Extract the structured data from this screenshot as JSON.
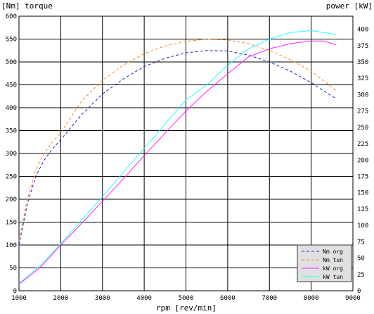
{
  "chart_data": {
    "type": "line",
    "left_axis_label": "[Nm]  torque",
    "right_axis_label": "power  [kW]",
    "xlabel": "rpm [rev/min]",
    "xlim": [
      1000,
      9000
    ],
    "ylim_left": [
      0,
      600
    ],
    "ylim_right": [
      0,
      420
    ],
    "x_ticks": [
      "1000",
      "2000",
      "3000",
      "4000",
      "5000",
      "6000",
      "7000",
      "8000",
      "9000"
    ],
    "y_left_ticks": [
      "0",
      "50",
      "100",
      "150",
      "200",
      "250",
      "300",
      "350",
      "400",
      "450",
      "500",
      "550",
      "600"
    ],
    "y_right_ticks": [
      "0",
      "25",
      "50",
      "75",
      "100",
      "125",
      "150",
      "175",
      "200",
      "225",
      "250",
      "275",
      "300",
      "325",
      "350",
      "375",
      "400"
    ],
    "grid": true,
    "legend_position": "bottom-right",
    "series": [
      {
        "name": "Nm org",
        "axis": "left",
        "style": "dashed",
        "color": "#2222cc",
        "x": [
          1000,
          1200,
          1400,
          1600,
          1800,
          2000,
          2500,
          3000,
          3500,
          4000,
          4500,
          5000,
          5500,
          6000,
          6500,
          7000,
          7500,
          8000,
          8500,
          8600
        ],
        "y": [
          100,
          190,
          250,
          285,
          310,
          330,
          385,
          430,
          463,
          490,
          508,
          520,
          525,
          524,
          515,
          500,
          480,
          455,
          425,
          420
        ]
      },
      {
        "name": "Nm tun",
        "axis": "left",
        "style": "dashed",
        "color": "#ff8822",
        "x": [
          1000,
          1200,
          1400,
          1600,
          1800,
          2000,
          2500,
          3000,
          3500,
          4000,
          4500,
          5000,
          5500,
          6000,
          6500,
          7000,
          7500,
          8000,
          8500,
          8600
        ],
        "y": [
          110,
          200,
          265,
          300,
          325,
          345,
          415,
          460,
          493,
          518,
          535,
          545,
          550,
          548,
          540,
          525,
          505,
          480,
          445,
          435
        ]
      },
      {
        "name": "kW org",
        "axis": "right",
        "style": "solid",
        "color": "#ff22ff",
        "x": [
          1000,
          1500,
          2000,
          2500,
          3000,
          3500,
          4000,
          4500,
          5000,
          5500,
          6000,
          6500,
          7000,
          7500,
          8000,
          8300,
          8600
        ],
        "y": [
          10,
          35,
          70,
          103,
          137,
          171,
          207,
          241,
          275,
          305,
          332,
          358,
          370,
          378,
          382,
          382,
          376
        ]
      },
      {
        "name": "kW tun",
        "axis": "right",
        "style": "solid",
        "color": "#22ffff",
        "x": [
          1000,
          1500,
          2000,
          2500,
          3000,
          3500,
          4000,
          4500,
          5000,
          5500,
          6000,
          6500,
          7000,
          7500,
          8000,
          8300,
          8600
        ],
        "y": [
          11,
          38,
          72,
          108,
          144,
          181,
          218,
          255,
          292,
          315,
          345,
          370,
          385,
          395,
          398,
          395,
          392
        ]
      }
    ]
  }
}
